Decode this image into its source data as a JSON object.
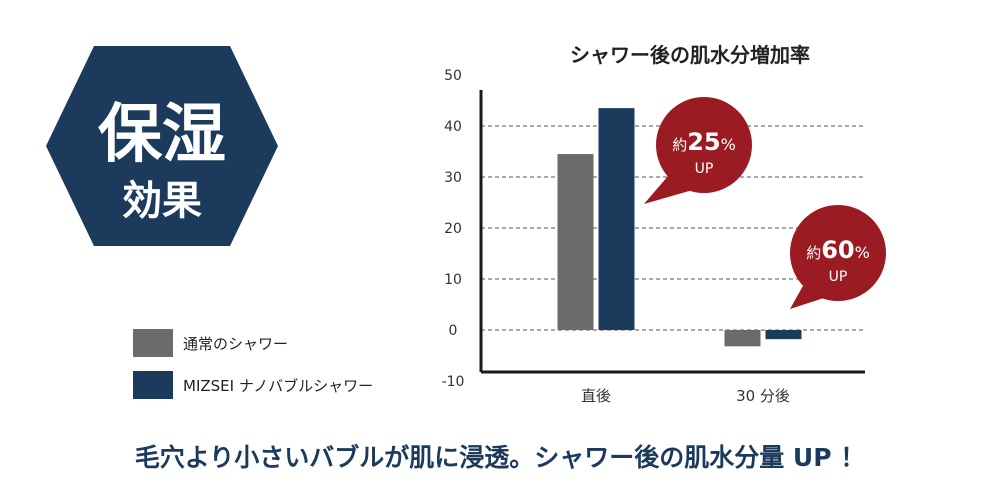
{
  "badge": {
    "title": "保湿",
    "subtitle": "効果"
  },
  "colors": {
    "navy": "#1b3a5c",
    "gray": "#6b6b6b",
    "red": "#9b1b22",
    "axis": "#1a1a1a"
  },
  "legend": [
    {
      "label": "通常のシャワー",
      "color": "#6b6b6b"
    },
    {
      "label": "MIZSEI ナノバブルシャワー",
      "color": "#1b3a5c"
    }
  ],
  "callouts": [
    {
      "prefix": "約",
      "value": "25",
      "unit": "%",
      "suffix": "UP"
    },
    {
      "prefix": "約",
      "value": "60",
      "unit": "%",
      "suffix": "UP"
    }
  ],
  "tagline": "毛穴より小さいバブルが肌に浸透。シャワー後の肌水分量 UP ！",
  "chart_data": {
    "type": "bar",
    "title": "シャワー後の肌水分増加率",
    "categories": [
      "直後",
      "30 分後"
    ],
    "series": [
      {
        "name": "通常のシャワー",
        "values": [
          34.5,
          -3.2
        ]
      },
      {
        "name": "MIZSEI ナノバブルシャワー",
        "values": [
          43.5,
          -1.8
        ]
      }
    ],
    "ylim": [
      -10,
      50
    ],
    "yticks": [
      50,
      40,
      30,
      20,
      10,
      0,
      -10
    ],
    "grid": true,
    "legend": "left"
  }
}
